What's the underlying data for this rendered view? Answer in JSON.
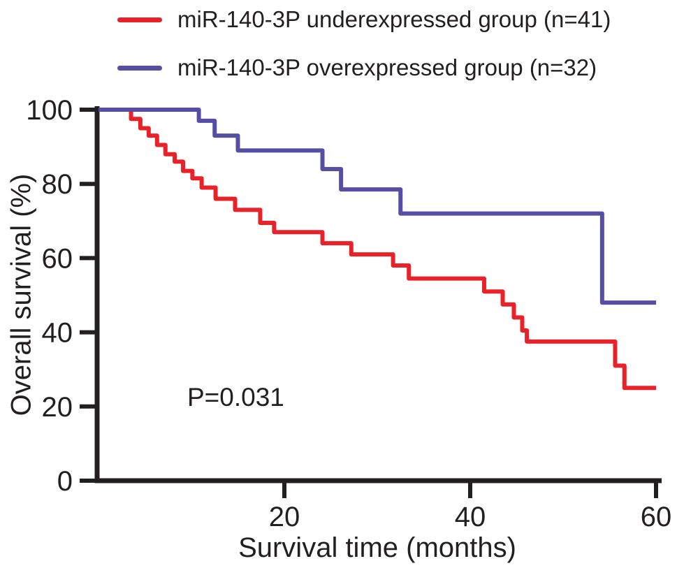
{
  "figure": {
    "background_color": "#ffffff",
    "ink_color": "#231f20"
  },
  "chart_data": {
    "type": "line",
    "subtype": "kaplan-meier-step",
    "title": "",
    "xlabel": "Survival time (months)",
    "ylabel": "Overall survival (%)",
    "xlim": [
      0,
      60
    ],
    "ylim": [
      0,
      100
    ],
    "x_ticks": [
      20,
      40,
      60
    ],
    "y_ticks": [
      0,
      20,
      40,
      60,
      80,
      100
    ],
    "grid": false,
    "legend_position": "top-left",
    "annotations": [
      {
        "text": "P=0.031",
        "x_months": 12,
        "y_percent": 22
      }
    ],
    "series": [
      {
        "name": "miR-140-3P underexpressed group (n=41)",
        "n": 41,
        "color": "#e9222a",
        "start": {
          "t": 0,
          "s": 100
        },
        "steps": [
          [
            3.5,
            97.5
          ],
          [
            4.5,
            95
          ],
          [
            5.4,
            93
          ],
          [
            6.3,
            90.5
          ],
          [
            7.2,
            88
          ],
          [
            8.2,
            86
          ],
          [
            9.1,
            83.5
          ],
          [
            10.1,
            81.5
          ],
          [
            11.1,
            79
          ],
          [
            12.6,
            76
          ],
          [
            14.7,
            73
          ],
          [
            17.4,
            69.5
          ],
          [
            18.9,
            67
          ],
          [
            24.1,
            64
          ],
          [
            27.2,
            61
          ],
          [
            31.7,
            58
          ],
          [
            33.4,
            54.5
          ],
          [
            41.5,
            51
          ],
          [
            43.5,
            47.5
          ],
          [
            44.7,
            44
          ],
          [
            45.6,
            40.5
          ],
          [
            46.1,
            37.5
          ],
          [
            55.6,
            31
          ],
          [
            56.6,
            25
          ]
        ],
        "end_t": 60,
        "end_s": 25
      },
      {
        "name": "miR-140-3P overexpressed group (n=32)",
        "n": 32,
        "color": "#564ea2",
        "start": {
          "t": 0,
          "s": 100
        },
        "steps": [
          [
            10.8,
            97
          ],
          [
            12.5,
            93
          ],
          [
            15,
            89
          ],
          [
            24.1,
            84
          ],
          [
            26.1,
            78.5
          ],
          [
            32.5,
            72
          ],
          [
            54.2,
            48
          ]
        ],
        "end_t": 60,
        "end_s": 48
      }
    ]
  }
}
